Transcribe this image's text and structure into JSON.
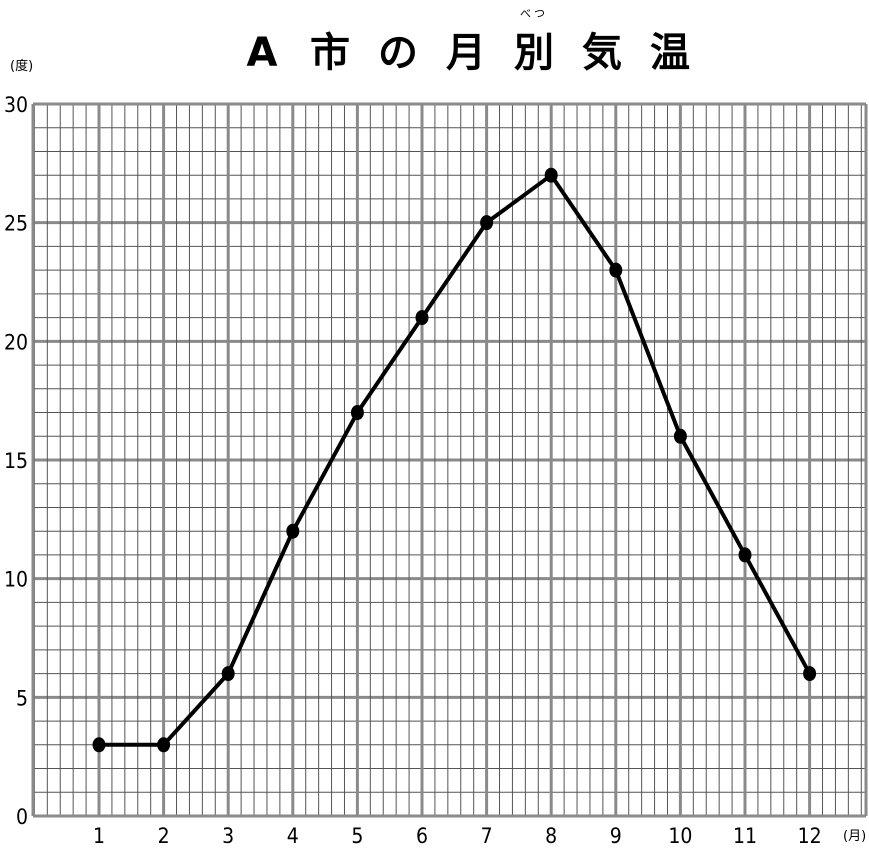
{
  "chart_data": {
    "type": "line",
    "title": "A市の月別気温",
    "title_ruby": {
      "char": "別",
      "reading": "べつ"
    },
    "ylabel": "(度)",
    "xlabel": "(月)",
    "categories": [
      "1",
      "2",
      "3",
      "4",
      "5",
      "6",
      "7",
      "8",
      "9",
      "10",
      "11",
      "12"
    ],
    "values": [
      3,
      3,
      6,
      12,
      17,
      21,
      25,
      27,
      23,
      16,
      11,
      6
    ],
    "ylim": [
      0,
      30
    ],
    "yticks": [
      "0",
      "5",
      "10",
      "15",
      "20",
      "25",
      "30"
    ],
    "grid": true,
    "line_color": "#000000",
    "grid_color": "#888888"
  }
}
